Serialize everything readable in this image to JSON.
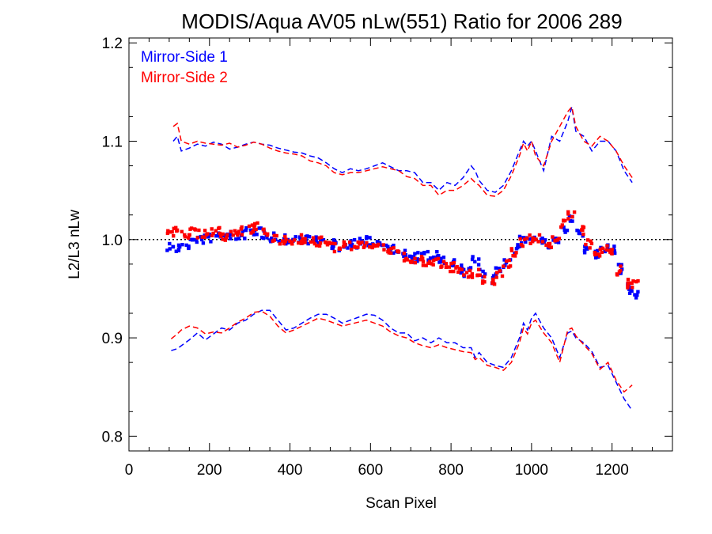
{
  "chart_data": {
    "type": "scatter",
    "title": "MODIS/Aqua AV05 nLw(551) Ratio for 2006 289",
    "xlabel": "Scan Pixel",
    "ylabel": "L2/L3 nLw",
    "xlim": [
      0,
      1350
    ],
    "ylim": [
      0.785,
      1.205
    ],
    "xticks": [
      0,
      200,
      400,
      600,
      800,
      1000,
      1200
    ],
    "xtick_labels": [
      "0",
      "200",
      "400",
      "600",
      "800",
      "1000",
      "1200"
    ],
    "yticks": [
      0.8,
      0.9,
      1.0,
      1.1,
      1.2
    ],
    "ytick_labels": [
      "0.8",
      "0.9",
      "1.0",
      "1.1",
      "1.2"
    ],
    "reference_line": {
      "y": 1.0,
      "style": "dotted",
      "color": "#000000"
    },
    "legend": {
      "position": "top-left"
    },
    "series": [
      {
        "name": "Mirror-Side 1",
        "color": "#0000ff",
        "points": {
          "x": [
            105,
            120,
            140,
            160,
            180,
            200,
            220,
            240,
            260,
            280,
            300,
            320,
            340,
            360,
            380,
            400,
            420,
            440,
            460,
            480,
            500,
            520,
            540,
            560,
            580,
            600,
            620,
            640,
            660,
            680,
            700,
            720,
            740,
            760,
            780,
            800,
            820,
            840,
            860,
            880,
            900,
            920,
            940,
            960,
            980,
            1000,
            1020,
            1040,
            1060,
            1080,
            1100,
            1120,
            1140,
            1160,
            1180,
            1200,
            1220,
            1240,
            1255
          ],
          "y": [
            0.993,
            0.99,
            0.995,
            0.998,
            1.0,
            1.002,
            1.004,
            1.003,
            1.004,
            1.005,
            1.007,
            1.009,
            1.006,
            1.002,
            1.0,
            0.999,
            1.001,
            1.0,
            0.998,
            0.999,
            0.995,
            0.993,
            0.994,
            0.996,
            0.997,
            0.998,
            0.997,
            0.994,
            0.99,
            0.985,
            0.98,
            0.982,
            0.983,
            0.984,
            0.978,
            0.975,
            0.97,
            0.967,
            0.978,
            0.965,
            0.96,
            0.967,
            0.975,
            0.99,
            1.0,
            1.004,
            0.998,
            0.995,
            1.0,
            1.01,
            1.02,
            1.005,
            0.99,
            0.985,
            0.99,
            0.99,
            0.97,
            0.95,
            0.945
          ]
        },
        "upper": {
          "x": [
            110,
            120,
            130,
            150,
            170,
            190,
            210,
            230,
            250,
            270,
            290,
            310,
            330,
            350,
            370,
            390,
            410,
            430,
            450,
            470,
            490,
            510,
            530,
            550,
            570,
            590,
            610,
            630,
            650,
            670,
            690,
            710,
            730,
            750,
            770,
            790,
            810,
            830,
            850,
            860,
            870,
            890,
            910,
            930,
            950,
            970,
            980,
            990,
            1000,
            1010,
            1030,
            1050,
            1070,
            1090,
            1100,
            1110,
            1130,
            1150,
            1170,
            1190,
            1210,
            1230,
            1250
          ],
          "y": [
            1.1,
            1.105,
            1.09,
            1.093,
            1.097,
            1.095,
            1.099,
            1.097,
            1.092,
            1.094,
            1.097,
            1.099,
            1.097,
            1.096,
            1.093,
            1.091,
            1.089,
            1.088,
            1.085,
            1.083,
            1.078,
            1.072,
            1.068,
            1.072,
            1.07,
            1.072,
            1.075,
            1.078,
            1.074,
            1.07,
            1.07,
            1.068,
            1.058,
            1.058,
            1.05,
            1.058,
            1.055,
            1.063,
            1.075,
            1.07,
            1.06,
            1.05,
            1.048,
            1.055,
            1.07,
            1.09,
            1.1,
            1.095,
            1.1,
            1.09,
            1.07,
            1.105,
            1.1,
            1.12,
            1.135,
            1.11,
            1.105,
            1.09,
            1.1,
            1.1,
            1.09,
            1.07,
            1.058
          ]
        },
        "lower": {
          "x": [
            105,
            120,
            130,
            150,
            170,
            190,
            210,
            230,
            250,
            270,
            290,
            310,
            330,
            350,
            370,
            390,
            410,
            430,
            450,
            470,
            490,
            510,
            530,
            550,
            570,
            590,
            610,
            630,
            650,
            670,
            690,
            710,
            730,
            750,
            770,
            790,
            810,
            830,
            850,
            860,
            870,
            890,
            910,
            930,
            950,
            970,
            980,
            990,
            1000,
            1010,
            1030,
            1050,
            1070,
            1090,
            1100,
            1110,
            1130,
            1150,
            1170,
            1190,
            1210,
            1230,
            1250
          ],
          "y": [
            0.887,
            0.889,
            0.892,
            0.898,
            0.905,
            0.898,
            0.904,
            0.91,
            0.908,
            0.915,
            0.918,
            0.924,
            0.928,
            0.928,
            0.918,
            0.908,
            0.91,
            0.915,
            0.92,
            0.924,
            0.924,
            0.92,
            0.915,
            0.918,
            0.921,
            0.924,
            0.923,
            0.918,
            0.91,
            0.905,
            0.905,
            0.897,
            0.9,
            0.895,
            0.9,
            0.895,
            0.895,
            0.89,
            0.89,
            0.88,
            0.885,
            0.875,
            0.872,
            0.87,
            0.88,
            0.9,
            0.915,
            0.908,
            0.92,
            0.925,
            0.91,
            0.9,
            0.88,
            0.905,
            0.907,
            0.9,
            0.895,
            0.886,
            0.87,
            0.872,
            0.855,
            0.838,
            0.826
          ]
        }
      },
      {
        "name": "Mirror-Side 2",
        "color": "#ff0000",
        "points": {
          "x": [
            105,
            120,
            140,
            160,
            180,
            200,
            220,
            240,
            260,
            280,
            300,
            320,
            340,
            360,
            380,
            400,
            420,
            440,
            460,
            480,
            500,
            520,
            540,
            560,
            580,
            600,
            620,
            640,
            660,
            680,
            700,
            720,
            740,
            760,
            780,
            800,
            820,
            840,
            860,
            880,
            900,
            920,
            940,
            960,
            980,
            1000,
            1020,
            1040,
            1060,
            1080,
            1100,
            1120,
            1140,
            1160,
            1180,
            1200,
            1220,
            1240,
            1255
          ],
          "y": [
            1.007,
            1.01,
            1.006,
            1.008,
            1.005,
            1.006,
            1.008,
            1.004,
            1.005,
            1.008,
            1.01,
            1.012,
            1.008,
            1.003,
            1.0,
            0.998,
            1.0,
            0.999,
            0.997,
            0.998,
            0.994,
            0.992,
            0.993,
            0.994,
            0.995,
            0.995,
            0.994,
            0.99,
            0.987,
            0.983,
            0.978,
            0.978,
            0.977,
            0.976,
            0.973,
            0.972,
            0.968,
            0.965,
            0.965,
            0.96,
            0.958,
            0.965,
            0.975,
            0.988,
            0.998,
            1.0,
            1.0,
            0.996,
            1.003,
            1.015,
            1.025,
            1.01,
            0.995,
            0.985,
            0.99,
            0.988,
            0.968,
            0.955,
            0.955
          ]
        },
        "upper": {
          "x": [
            110,
            120,
            130,
            150,
            170,
            190,
            210,
            230,
            250,
            270,
            290,
            310,
            330,
            350,
            370,
            390,
            410,
            430,
            450,
            470,
            490,
            510,
            530,
            550,
            570,
            590,
            610,
            630,
            650,
            670,
            690,
            710,
            730,
            750,
            770,
            790,
            810,
            830,
            850,
            860,
            870,
            890,
            910,
            930,
            950,
            970,
            980,
            990,
            1000,
            1010,
            1030,
            1050,
            1070,
            1090,
            1100,
            1110,
            1130,
            1150,
            1170,
            1190,
            1210,
            1230,
            1250
          ],
          "y": [
            1.115,
            1.118,
            1.1,
            1.097,
            1.1,
            1.098,
            1.097,
            1.096,
            1.098,
            1.094,
            1.096,
            1.099,
            1.097,
            1.093,
            1.09,
            1.088,
            1.087,
            1.085,
            1.08,
            1.078,
            1.075,
            1.068,
            1.066,
            1.068,
            1.068,
            1.07,
            1.072,
            1.074,
            1.072,
            1.07,
            1.064,
            1.062,
            1.055,
            1.055,
            1.045,
            1.05,
            1.05,
            1.055,
            1.062,
            1.058,
            1.055,
            1.045,
            1.044,
            1.05,
            1.065,
            1.085,
            1.098,
            1.09,
            1.1,
            1.085,
            1.075,
            1.1,
            1.115,
            1.13,
            1.135,
            1.115,
            1.1,
            1.095,
            1.105,
            1.1,
            1.09,
            1.075,
            1.063
          ]
        },
        "lower": {
          "x": [
            105,
            120,
            130,
            150,
            170,
            190,
            210,
            230,
            250,
            270,
            290,
            310,
            330,
            350,
            370,
            390,
            410,
            430,
            450,
            470,
            490,
            510,
            530,
            550,
            570,
            590,
            610,
            630,
            650,
            670,
            690,
            710,
            730,
            750,
            770,
            790,
            810,
            830,
            850,
            860,
            870,
            890,
            910,
            930,
            950,
            970,
            980,
            990,
            1000,
            1010,
            1030,
            1050,
            1070,
            1090,
            1100,
            1110,
            1130,
            1150,
            1170,
            1190,
            1210,
            1230,
            1250
          ],
          "y": [
            0.899,
            0.904,
            0.908,
            0.912,
            0.91,
            0.904,
            0.906,
            0.905,
            0.91,
            0.916,
            0.92,
            0.926,
            0.927,
            0.922,
            0.912,
            0.905,
            0.908,
            0.912,
            0.916,
            0.92,
            0.918,
            0.915,
            0.912,
            0.914,
            0.916,
            0.918,
            0.915,
            0.912,
            0.906,
            0.902,
            0.9,
            0.895,
            0.892,
            0.89,
            0.893,
            0.89,
            0.888,
            0.886,
            0.885,
            0.878,
            0.88,
            0.872,
            0.87,
            0.867,
            0.875,
            0.895,
            0.91,
            0.904,
            0.915,
            0.918,
            0.905,
            0.895,
            0.875,
            0.908,
            0.91,
            0.902,
            0.893,
            0.884,
            0.868,
            0.875,
            0.857,
            0.845,
            0.852
          ]
        }
      }
    ]
  }
}
